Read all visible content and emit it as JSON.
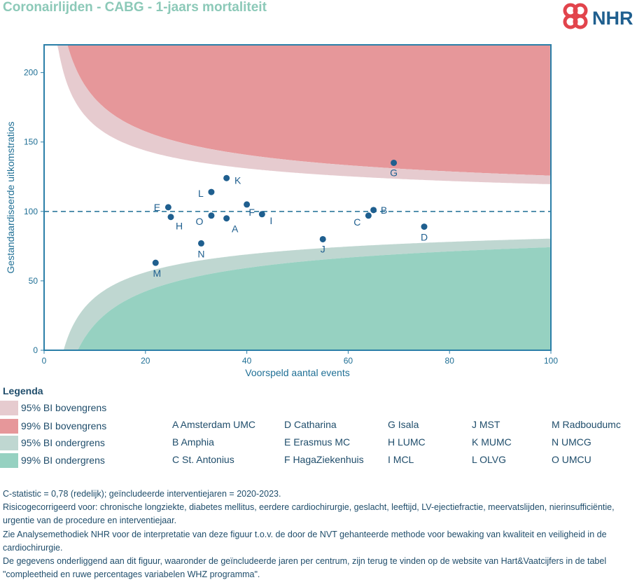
{
  "title": "Coronairlijden - CABG - 1-jaars mortaliteit",
  "logo": {
    "text": "NHR",
    "color": "#e2444c"
  },
  "chart_data": {
    "type": "scatter",
    "xlabel": "Voorspeld aantal events",
    "ylabel": "Gestandaardiseerde uitkomstratios",
    "xlim": [
      0,
      100
    ],
    "ylim": [
      0,
      220
    ],
    "xticks": [
      0,
      20,
      40,
      60,
      80,
      100
    ],
    "yticks": [
      0,
      50,
      100,
      150,
      200
    ],
    "reference_line": 100,
    "grid": false,
    "colors": {
      "upper95": "#e6cbcf",
      "upper99": "#e6979a",
      "lower95": "#bfd7d1",
      "lower99": "#96d1c1",
      "points": "#1f5f8f",
      "axis": "#2b7fa8"
    },
    "points": [
      {
        "label": "A",
        "x": 36,
        "y": 95
      },
      {
        "label": "B",
        "x": 65,
        "y": 101
      },
      {
        "label": "C",
        "x": 64,
        "y": 97
      },
      {
        "label": "D",
        "x": 75,
        "y": 89
      },
      {
        "label": "E",
        "x": 24.5,
        "y": 103
      },
      {
        "label": "F",
        "x": 40,
        "y": 105
      },
      {
        "label": "G",
        "x": 69,
        "y": 135
      },
      {
        "label": "H",
        "x": 25,
        "y": 96
      },
      {
        "label": "I",
        "x": 43,
        "y": 98
      },
      {
        "label": "J",
        "x": 55,
        "y": 80
      },
      {
        "label": "K",
        "x": 36,
        "y": 124
      },
      {
        "label": "L",
        "x": 33,
        "y": 114
      },
      {
        "label": "M",
        "x": 22,
        "y": 63
      },
      {
        "label": "N",
        "x": 31,
        "y": 77
      },
      {
        "label": "O",
        "x": 33,
        "y": 97
      }
    ]
  },
  "legend": {
    "title": "Legenda",
    "items": [
      {
        "label": "95% BI bovengrens",
        "color": "#e6cbcf"
      },
      {
        "label": "99% BI bovengrens",
        "color": "#e6979a"
      },
      {
        "label": "95% BI ondergrens",
        "color": "#bfd7d1"
      },
      {
        "label": "99% BI ondergrens",
        "color": "#96d1c1"
      }
    ],
    "centers": [
      "A Amsterdam UMC",
      "B Amphia",
      "C St. Antonius",
      "D Catharina",
      "E Erasmus MC",
      "F HagaZiekenhuis",
      "G Isala",
      "H LUMC",
      "I MCL",
      "J MST",
      "K MUMC",
      "L OLVG",
      "M Radboudumc",
      "N UMCG",
      "O UMCU"
    ]
  },
  "notes": [
    "C-statistic =  0,78 (redelijk); geïncludeerde interventiejaren = 2020-2023.",
    "Risicogecorrigeerd voor: chronische longziekte, diabetes mellitus, eerdere cardiochirurgie, geslacht, leeftijd, LV-ejectiefractie, meervatslijden, nierinsufficiëntie, urgentie van de procedure en interventiejaar.",
    "Zie Analysemethodiek NHR voor de interpretatie van deze figuur t.o.v. de door de NVT gehanteerde methode voor bewaking van kwaliteit en veiligheid in de cardiochirurgie.",
    "De gegevens onderliggend aan dit figuur, waaronder de geïncludeerde jaren per centrum, zijn terug te vinden op de website van Hart&Vaatcijfers in de tabel \"compleetheid en ruwe percentages variabelen WHZ programma\"."
  ]
}
